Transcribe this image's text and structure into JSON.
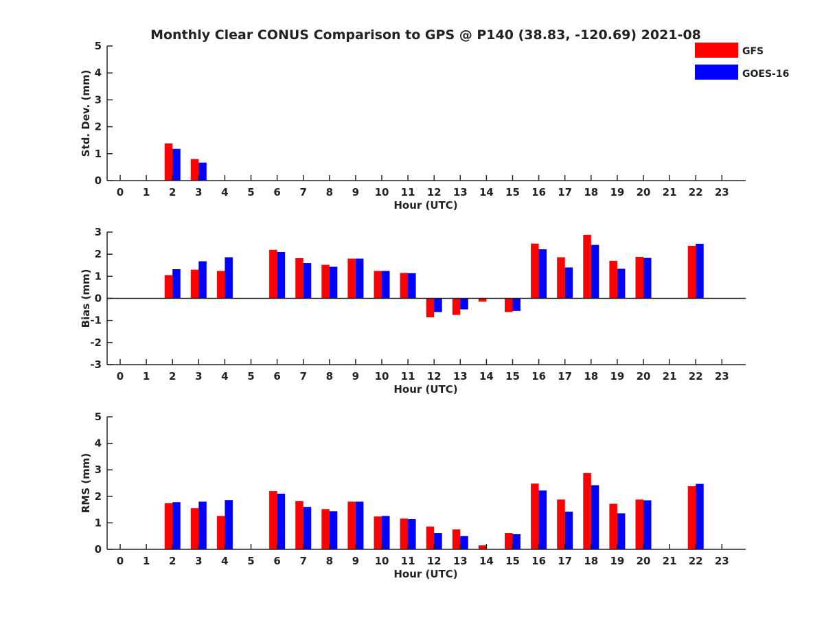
{
  "title": "Monthly Clear CONUS Comparison to GPS @ P140 (38.83, -120.69) 2021-08",
  "colors": {
    "GFS": "#ff0000",
    "GOES-16": "#0000ff"
  },
  "legend": {
    "placement": "top-right",
    "entries": [
      "GFS",
      "GOES-16"
    ]
  },
  "chart_data": [
    {
      "type": "bar",
      "ylabel": "Std. Dev. (mm)",
      "xlabel": "Hour (UTC)",
      "ylim": [
        0,
        5
      ],
      "yticks": [
        0,
        1,
        2,
        3,
        4,
        5
      ],
      "categories": [
        "0",
        "1",
        "2",
        "3",
        "4",
        "5",
        "6",
        "7",
        "8",
        "9",
        "10",
        "11",
        "12",
        "13",
        "14",
        "15",
        "16",
        "17",
        "18",
        "19",
        "20",
        "21",
        "22",
        "23"
      ],
      "series": [
        {
          "name": "GFS",
          "values": [
            null,
            null,
            1.38,
            0.8,
            null,
            null,
            null,
            null,
            null,
            null,
            null,
            null,
            null,
            null,
            null,
            null,
            null,
            null,
            null,
            null,
            null,
            null,
            null,
            null
          ]
        },
        {
          "name": "GOES-16",
          "values": [
            null,
            null,
            1.18,
            0.67,
            null,
            null,
            null,
            null,
            null,
            null,
            null,
            null,
            null,
            null,
            null,
            null,
            null,
            null,
            null,
            null,
            null,
            null,
            null,
            null
          ]
        }
      ]
    },
    {
      "type": "bar",
      "ylabel": "Bias (mm)",
      "xlabel": "Hour (UTC)",
      "ylim": [
        -3,
        3
      ],
      "yticks": [
        -3,
        -2,
        -1,
        0,
        1,
        2,
        3
      ],
      "zero_line": true,
      "categories": [
        "0",
        "1",
        "2",
        "3",
        "4",
        "5",
        "6",
        "7",
        "8",
        "9",
        "10",
        "11",
        "12",
        "13",
        "14",
        "15",
        "16",
        "17",
        "18",
        "19",
        "20",
        "21",
        "22",
        "23"
      ],
      "series": [
        {
          "name": "GFS",
          "values": [
            null,
            null,
            1.05,
            1.3,
            1.24,
            null,
            2.2,
            1.82,
            1.52,
            1.8,
            1.24,
            1.15,
            -0.86,
            -0.75,
            -0.15,
            -0.62,
            2.48,
            1.86,
            2.88,
            1.7,
            1.88,
            null,
            2.38,
            null
          ]
        },
        {
          "name": "GOES-16",
          "values": [
            null,
            null,
            1.32,
            1.68,
            1.86,
            null,
            2.1,
            1.6,
            1.43,
            1.8,
            1.24,
            1.14,
            -0.62,
            -0.5,
            null,
            -0.57,
            2.22,
            1.4,
            2.42,
            1.34,
            1.83,
            null,
            2.47,
            null
          ]
        }
      ]
    },
    {
      "type": "bar",
      "ylabel": "RMS (mm)",
      "xlabel": "Hour (UTC)",
      "ylim": [
        0,
        5
      ],
      "yticks": [
        0,
        1,
        2,
        3,
        4,
        5
      ],
      "categories": [
        "0",
        "1",
        "2",
        "3",
        "4",
        "5",
        "6",
        "7",
        "8",
        "9",
        "10",
        "11",
        "12",
        "13",
        "14",
        "15",
        "16",
        "17",
        "18",
        "19",
        "20",
        "21",
        "22",
        "23"
      ],
      "series": [
        {
          "name": "GFS",
          "values": [
            null,
            null,
            1.74,
            1.55,
            1.26,
            null,
            2.2,
            1.82,
            1.52,
            1.8,
            1.24,
            1.16,
            0.86,
            0.75,
            0.15,
            0.62,
            2.48,
            1.88,
            2.88,
            1.72,
            1.88,
            null,
            2.38,
            null
          ]
        },
        {
          "name": "GOES-16",
          "values": [
            null,
            null,
            1.78,
            1.8,
            1.86,
            null,
            2.1,
            1.6,
            1.44,
            1.8,
            1.26,
            1.14,
            0.62,
            0.5,
            null,
            0.57,
            2.22,
            1.42,
            2.42,
            1.36,
            1.85,
            null,
            2.47,
            null
          ]
        }
      ]
    }
  ]
}
